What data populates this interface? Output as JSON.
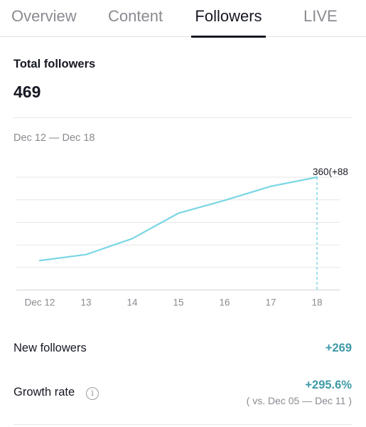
{
  "tabs": [
    {
      "label": "Overview",
      "active": false
    },
    {
      "label": "Content",
      "active": false
    },
    {
      "label": "Followers",
      "active": true
    },
    {
      "label": "LIVE",
      "active": false
    }
  ],
  "summary": {
    "title": "Total followers",
    "total": "469"
  },
  "date_range": "Dec 12 — Dec 18",
  "chart_data": {
    "type": "line",
    "categories": [
      "Dec 12",
      "13",
      "14",
      "15",
      "16",
      "17",
      "18"
    ],
    "series": [
      {
        "values": [
          94,
          113,
          164,
          245,
          286,
          331,
          360
        ]
      }
    ],
    "highlight": {
      "index": 6,
      "label": "360(+88"
    },
    "line_color": "#7ad6e4"
  },
  "new_followers": {
    "label": "New followers",
    "value": "+269"
  },
  "growth_rate": {
    "label": "Growth rate",
    "value": "+295.6%",
    "comparison": "( vs. Dec 05 — Dec 11 )",
    "icon": "info-icon"
  },
  "colors": {
    "accent": "#3e9aa8"
  }
}
